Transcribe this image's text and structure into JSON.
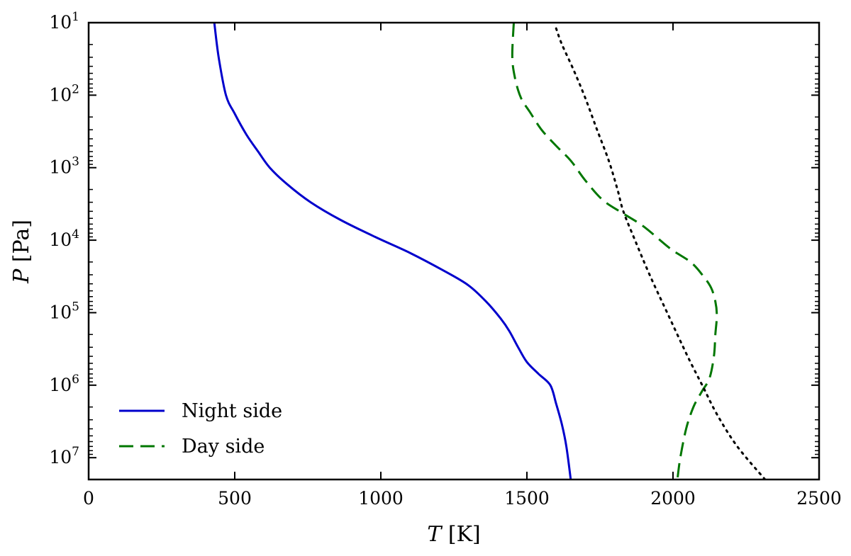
{
  "chart_data": {
    "type": "line",
    "title": "",
    "xlabel": {
      "var": "T",
      "unit": " [K]"
    },
    "ylabel": {
      "var": "P",
      "unit": " [Pa]"
    },
    "xlim": [
      0,
      2500
    ],
    "ylim": [
      10,
      20000000
    ],
    "yscale": "log",
    "yaxis_inverted": true,
    "x_ticks": [
      0,
      500,
      1000,
      1500,
      2000,
      2500
    ],
    "x_tick_labels": [
      "0",
      "500",
      "1000",
      "1500",
      "2000",
      "2500"
    ],
    "y_ticks": [
      {
        "value": 10,
        "base": "10",
        "exp": "1"
      },
      {
        "value": 100,
        "base": "10",
        "exp": "2"
      },
      {
        "value": 1000,
        "base": "10",
        "exp": "3"
      },
      {
        "value": 10000,
        "base": "10",
        "exp": "4"
      },
      {
        "value": 100000,
        "base": "10",
        "exp": "5"
      },
      {
        "value": 1000000,
        "base": "10",
        "exp": "6"
      },
      {
        "value": 10000000,
        "base": "10",
        "exp": "7"
      }
    ],
    "grid": false,
    "legend_position": "lower-left",
    "series": [
      {
        "name": "Night side",
        "color": "#0000cc",
        "style": "solid",
        "points": [
          [
            430,
            10
          ],
          [
            445,
            30
          ],
          [
            470,
            100
          ],
          [
            500,
            180
          ],
          [
            540,
            350
          ],
          [
            580,
            600
          ],
          [
            620,
            1000
          ],
          [
            680,
            1700
          ],
          [
            760,
            3000
          ],
          [
            860,
            5200
          ],
          [
            980,
            9000
          ],
          [
            1100,
            15000
          ],
          [
            1220,
            27000
          ],
          [
            1300,
            42000
          ],
          [
            1360,
            70000
          ],
          [
            1410,
            120000
          ],
          [
            1440,
            180000
          ],
          [
            1470,
            300000
          ],
          [
            1500,
            480000
          ],
          [
            1540,
            700000
          ],
          [
            1580,
            1000000
          ],
          [
            1600,
            1800000
          ],
          [
            1620,
            3500000
          ],
          [
            1635,
            7000000
          ],
          [
            1650,
            20000000
          ]
        ]
      },
      {
        "name": "Day side",
        "color": "#007700",
        "style": "dashed",
        "points": [
          [
            1455,
            10
          ],
          [
            1450,
            30
          ],
          [
            1460,
            60
          ],
          [
            1480,
            110
          ],
          [
            1510,
            170
          ],
          [
            1550,
            300
          ],
          [
            1600,
            500
          ],
          [
            1650,
            800
          ],
          [
            1700,
            1500
          ],
          [
            1760,
            2800
          ],
          [
            1830,
            4300
          ],
          [
            1900,
            6500
          ],
          [
            1990,
            13000
          ],
          [
            2060,
            20000
          ],
          [
            2100,
            30000
          ],
          [
            2130,
            45000
          ],
          [
            2145,
            70000
          ],
          [
            2150,
            110000
          ],
          [
            2145,
            200000
          ],
          [
            2140,
            400000
          ],
          [
            2125,
            800000
          ],
          [
            2100,
            1200000
          ],
          [
            2070,
            2000000
          ],
          [
            2045,
            4000000
          ],
          [
            2025,
            10000000
          ],
          [
            2015,
            20000000
          ]
        ]
      },
      {
        "name": "",
        "color": "#000000",
        "style": "dotted",
        "points": [
          [
            1600,
            12
          ],
          [
            1620,
            20
          ],
          [
            1660,
            45
          ],
          [
            1700,
            110
          ],
          [
            1740,
            300
          ],
          [
            1780,
            800
          ],
          [
            1810,
            2000
          ],
          [
            1830,
            4000
          ],
          [
            1870,
            10000
          ],
          [
            1920,
            30000
          ],
          [
            1980,
            100000
          ],
          [
            2050,
            400000
          ],
          [
            2100,
            1000000
          ],
          [
            2150,
            2500000
          ],
          [
            2220,
            7000000
          ],
          [
            2315,
            20000000
          ]
        ]
      }
    ]
  }
}
